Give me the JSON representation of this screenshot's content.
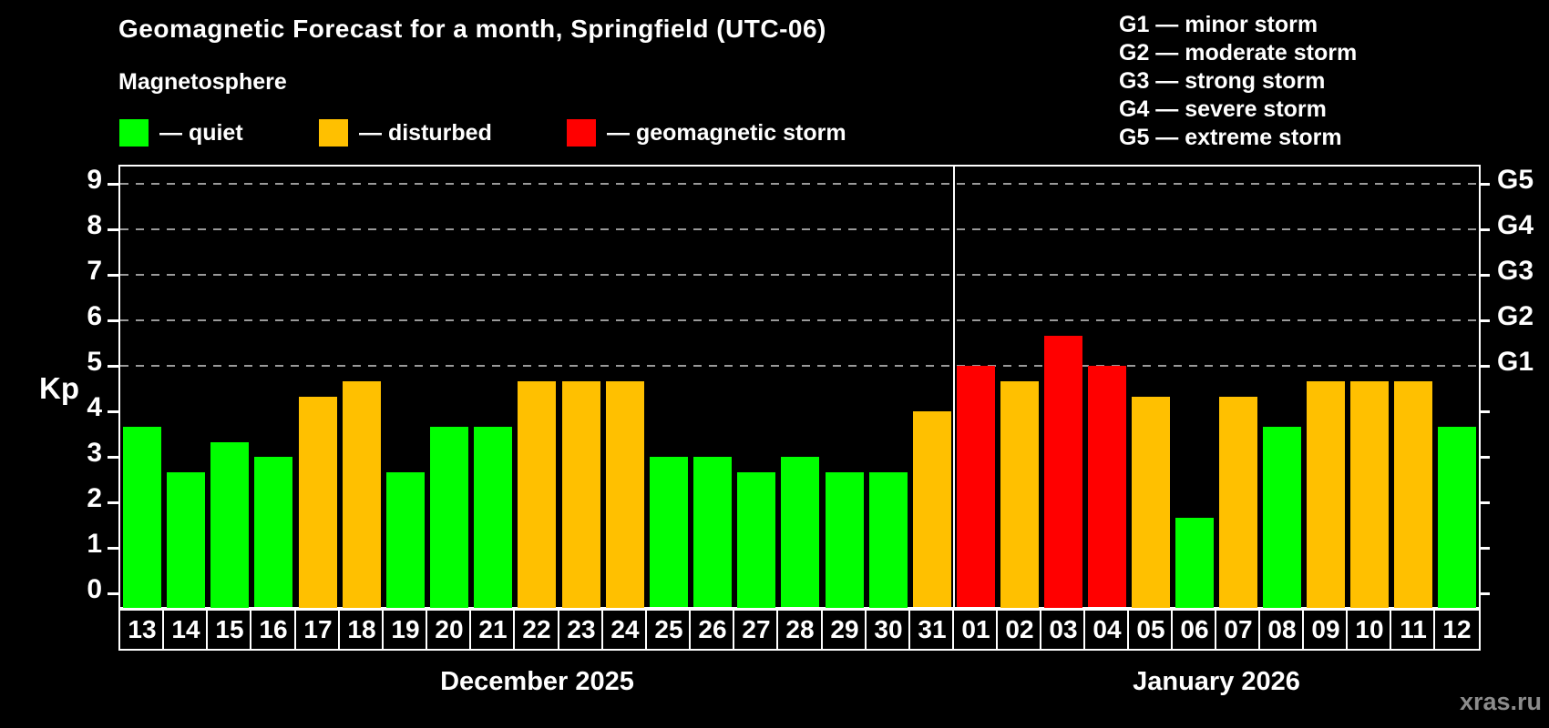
{
  "title": "Geomagnetic Forecast for a month, Springfield (UTC-06)",
  "subtitle": "Magnetosphere",
  "watermark": "xras.ru",
  "status_legend": [
    {
      "status": "quiet",
      "label": "— quiet",
      "color": "#00ff00"
    },
    {
      "status": "disturbed",
      "label": "— disturbed",
      "color": "#ffc000"
    },
    {
      "status": "storm",
      "label": "— geomagnetic storm",
      "color": "#ff0000"
    }
  ],
  "g_scale_legend": [
    "G1 — minor storm",
    "G2 — moderate storm",
    "G3 — strong storm",
    "G4 — severe storm",
    "G5 — extreme storm"
  ],
  "chart_data": {
    "type": "bar",
    "title": "Geomagnetic Forecast for a month, Springfield (UTC-06)",
    "ylabel": "Kp",
    "ylim": [
      0,
      9
    ],
    "left_ticks": [
      0,
      1,
      2,
      3,
      4,
      5,
      6,
      7,
      8,
      9
    ],
    "right_axis_labels": [
      {
        "label": "G1",
        "kp": 5
      },
      {
        "label": "G2",
        "kp": 6
      },
      {
        "label": "G3",
        "kp": 7
      },
      {
        "label": "G4",
        "kp": 8
      },
      {
        "label": "G5",
        "kp": 9
      }
    ],
    "gridlines_at_kp": [
      5,
      6,
      7,
      8,
      9
    ],
    "grid": "dashed",
    "legend_position": "top",
    "status_colors": {
      "quiet": "#00ff00",
      "disturbed": "#ffc000",
      "storm": "#ff0000"
    },
    "months": [
      {
        "label": "December 2025",
        "days": [
          {
            "date": "13",
            "kp": 3.67,
            "status": "quiet"
          },
          {
            "date": "14",
            "kp": 2.67,
            "status": "quiet"
          },
          {
            "date": "15",
            "kp": 3.33,
            "status": "quiet"
          },
          {
            "date": "16",
            "kp": 3.0,
            "status": "quiet"
          },
          {
            "date": "17",
            "kp": 4.33,
            "status": "disturbed"
          },
          {
            "date": "18",
            "kp": 4.67,
            "status": "disturbed"
          },
          {
            "date": "19",
            "kp": 2.67,
            "status": "quiet"
          },
          {
            "date": "20",
            "kp": 3.67,
            "status": "quiet"
          },
          {
            "date": "21",
            "kp": 3.67,
            "status": "quiet"
          },
          {
            "date": "22",
            "kp": 4.67,
            "status": "disturbed"
          },
          {
            "date": "23",
            "kp": 4.67,
            "status": "disturbed"
          },
          {
            "date": "24",
            "kp": 4.67,
            "status": "disturbed"
          },
          {
            "date": "25",
            "kp": 3.0,
            "status": "quiet"
          },
          {
            "date": "26",
            "kp": 3.0,
            "status": "quiet"
          },
          {
            "date": "27",
            "kp": 2.67,
            "status": "quiet"
          },
          {
            "date": "28",
            "kp": 3.0,
            "status": "quiet"
          },
          {
            "date": "29",
            "kp": 2.67,
            "status": "quiet"
          },
          {
            "date": "30",
            "kp": 2.67,
            "status": "quiet"
          },
          {
            "date": "31",
            "kp": 4.0,
            "status": "disturbed"
          }
        ]
      },
      {
        "label": "January 2026",
        "days": [
          {
            "date": "01",
            "kp": 5.0,
            "status": "storm"
          },
          {
            "date": "02",
            "kp": 4.67,
            "status": "disturbed"
          },
          {
            "date": "03",
            "kp": 5.67,
            "status": "storm"
          },
          {
            "date": "04",
            "kp": 5.0,
            "status": "storm"
          },
          {
            "date": "05",
            "kp": 4.33,
            "status": "disturbed"
          },
          {
            "date": "06",
            "kp": 1.67,
            "status": "quiet"
          },
          {
            "date": "07",
            "kp": 4.33,
            "status": "disturbed"
          },
          {
            "date": "08",
            "kp": 3.67,
            "status": "quiet"
          },
          {
            "date": "09",
            "kp": 4.67,
            "status": "disturbed"
          },
          {
            "date": "10",
            "kp": 4.67,
            "status": "disturbed"
          },
          {
            "date": "11",
            "kp": 4.67,
            "status": "disturbed"
          },
          {
            "date": "12",
            "kp": 3.67,
            "status": "quiet"
          }
        ]
      }
    ]
  }
}
